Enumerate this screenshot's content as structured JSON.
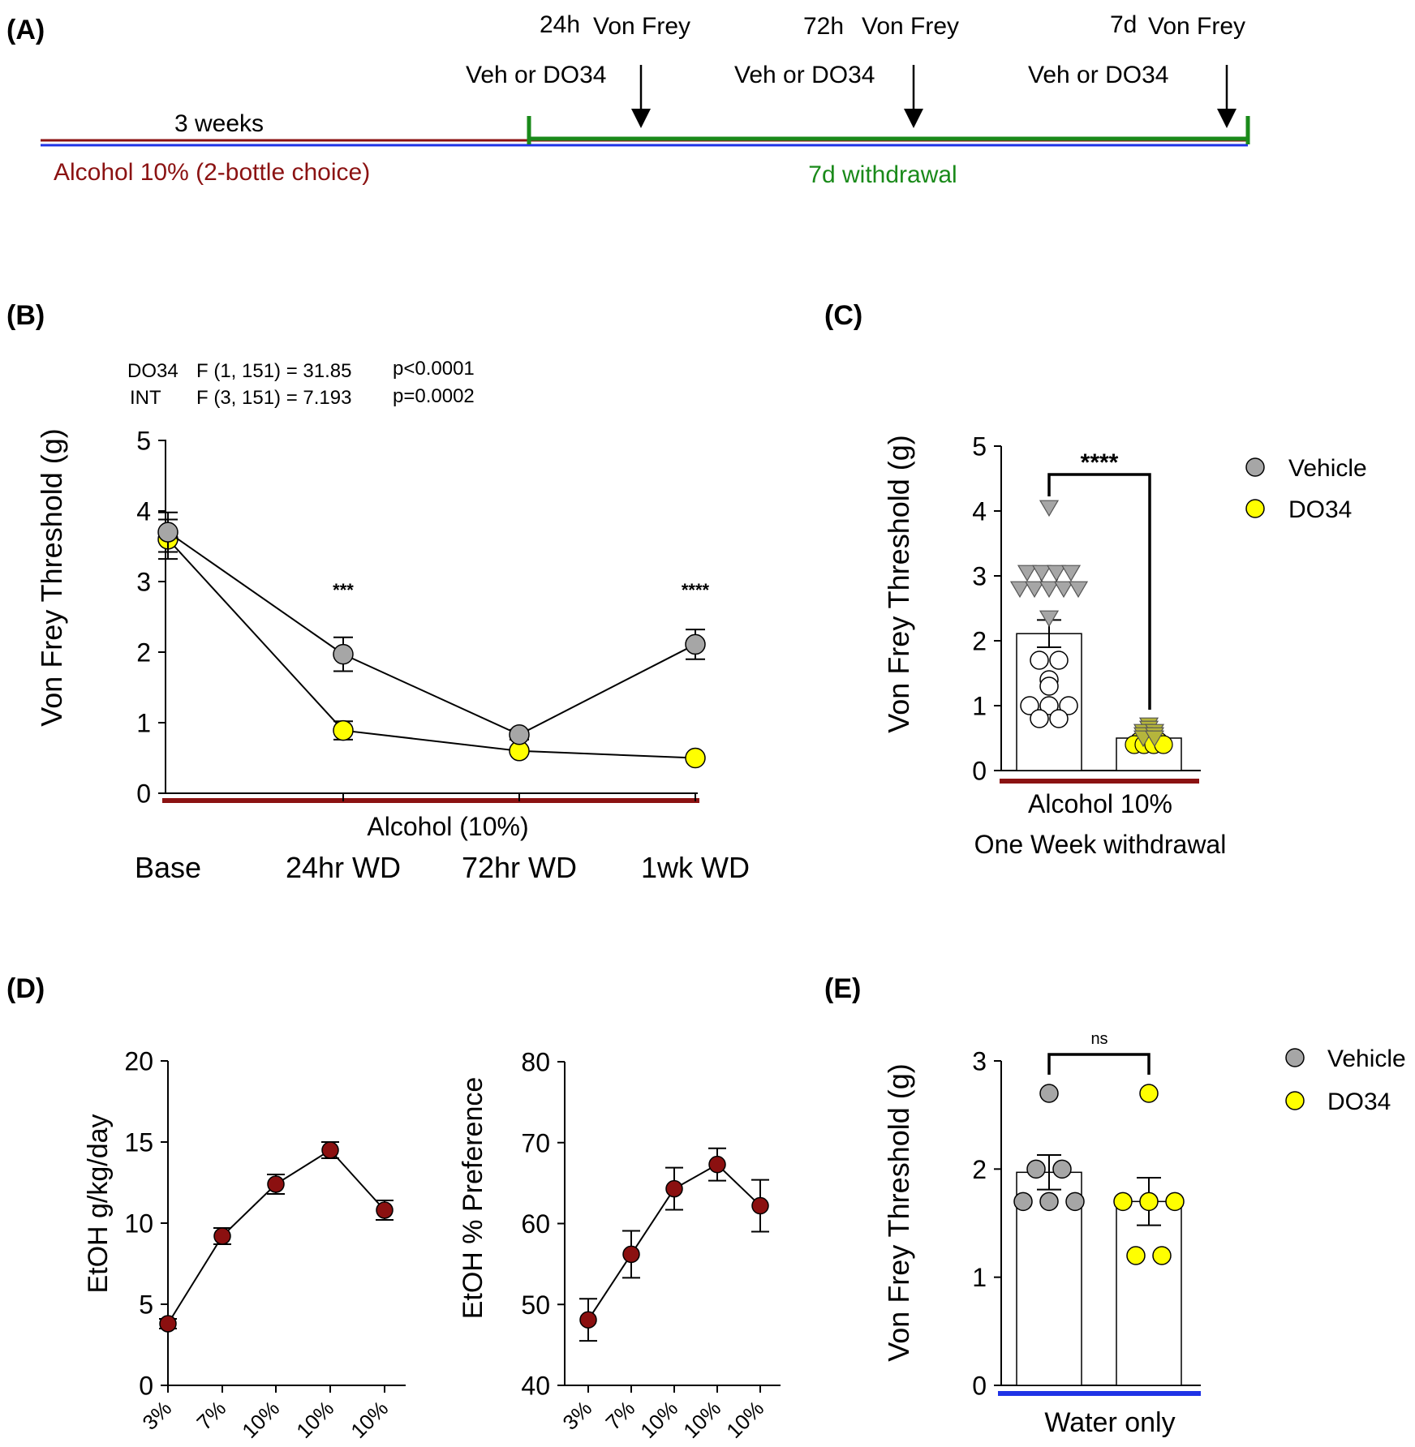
{
  "colors": {
    "vehicle": "#a6a6a6",
    "do34": "#ffff00",
    "do34_triangle": "#b5b53c",
    "alcohol": "#8b1212",
    "green": "#1a8a1a",
    "blue": "#1f33e6",
    "etoh": "#8b1010",
    "white": "#ffffff",
    "black": "#000000"
  },
  "panel_a": {
    "label": "(A)",
    "period_label": "3 weeks",
    "alcohol_label": "Alcohol 10% (2-bottle choice)",
    "withdrawal_label": "7d withdrawal",
    "timepoints": [
      {
        "time": "24h",
        "test": "Von Frey",
        "treatment": "Veh or DO34"
      },
      {
        "time": "72h",
        "test": "Von Frey",
        "treatment": "Veh or DO34"
      },
      {
        "time": "7d",
        "test": "Von Frey",
        "treatment": "Veh or DO34"
      }
    ]
  },
  "chart_data": [
    {
      "id": "B",
      "type": "line",
      "panel_label": "(B)",
      "stats": [
        {
          "effect": "DO34",
          "f": "F (1, 151) = 31.85",
          "p": "p<0.0001"
        },
        {
          "effect": "INT",
          "f": "F (3, 151) = 7.193",
          "p": "p=0.0002"
        }
      ],
      "ylabel": "Von Frey Threshold (g)",
      "xlabel": "Alcohol (10%)",
      "categories": [
        "Base",
        "24hr WD",
        "72hr WD",
        "1wk WD"
      ],
      "ylim": [
        0,
        5
      ],
      "yticks": [
        "0",
        "1",
        "2",
        "3",
        "4",
        "5"
      ],
      "series": [
        {
          "key": "vehicle",
          "values": [
            3.7,
            1.97,
            0.83,
            2.11
          ],
          "errors": [
            0.28,
            0.24,
            0.07,
            0.21
          ]
        },
        {
          "key": "do34",
          "values": [
            3.6,
            0.89,
            0.6,
            0.5
          ],
          "errors": [
            0.28,
            0.13,
            0.05,
            0.04
          ]
        }
      ],
      "significance": [
        {
          "category_index": 1,
          "label": "***"
        },
        {
          "category_index": 3,
          "label": "****"
        }
      ]
    },
    {
      "id": "C",
      "type": "bar",
      "panel_label": "(C)",
      "ylabel": "Von Frey Threshold (g)",
      "xlabel_lines": [
        "Alcohol 10%",
        "One Week withdrawal"
      ],
      "ylim": [
        0,
        5
      ],
      "yticks": [
        "0",
        "1",
        "2",
        "3",
        "4",
        "5"
      ],
      "legend": {
        "position": "top-right",
        "entries": [
          "Vehicle",
          "DO34"
        ]
      },
      "bars": [
        {
          "key": "vehicle",
          "value": 2.11,
          "error": 0.21
        },
        {
          "key": "do34",
          "value": 0.5,
          "error": 0.04
        }
      ],
      "significance": "****",
      "points_vehicle_triangles": [
        4.05,
        3.05,
        3.05,
        3.05,
        3.05,
        2.8,
        2.8,
        2.8,
        2.8,
        2.8,
        2.35
      ],
      "points_vehicle_circles": [
        3.0,
        1.7,
        1.7,
        1.4,
        1.3,
        1.0,
        1.0,
        1.0,
        0.8,
        0.8
      ],
      "points_do34_triangles": [
        0.7,
        0.65,
        0.6,
        0.6,
        0.55,
        0.55,
        0.5,
        0.5
      ],
      "points_do34_circles": [
        0.55,
        0.5,
        0.45,
        0.45,
        0.45,
        0.4,
        0.4,
        0.4,
        0.4
      ]
    },
    {
      "id": "D1",
      "type": "line",
      "panel_label": "(D)",
      "ylabel": "EtOH g/kg/day",
      "categories": [
        "3%",
        "7%",
        "10%",
        "10%",
        "10%"
      ],
      "ylim": [
        0,
        20
      ],
      "yticks": [
        "0",
        "5",
        "10",
        "15",
        "20"
      ],
      "series": [
        {
          "values": [
            3.8,
            9.2,
            12.4,
            14.5,
            10.8
          ],
          "errors": [
            0.3,
            0.5,
            0.6,
            0.5,
            0.6
          ]
        }
      ]
    },
    {
      "id": "D2",
      "type": "line",
      "ylabel": "EtOH % Preference",
      "categories": [
        "3%",
        "7%",
        "10%",
        "10%",
        "10%"
      ],
      "ylim": [
        40,
        80
      ],
      "yticks": [
        "40",
        "50",
        "60",
        "70",
        "80"
      ],
      "series": [
        {
          "values": [
            48.1,
            56.2,
            64.3,
            67.3,
            62.2
          ],
          "errors": [
            2.6,
            2.9,
            2.6,
            2.0,
            3.2
          ]
        }
      ]
    },
    {
      "id": "E",
      "type": "bar",
      "panel_label": "(E)",
      "ylabel": "Von Frey Threshold (g)",
      "xlabel": "Water only",
      "ylim": [
        0,
        3
      ],
      "yticks": [
        "0",
        "1",
        "2",
        "3"
      ],
      "legend": {
        "position": "top-right",
        "entries": [
          "Vehicle",
          "DO34"
        ]
      },
      "bars": [
        {
          "key": "vehicle",
          "value": 1.97,
          "error": 0.16
        },
        {
          "key": "do34",
          "value": 1.7,
          "error": 0.22
        }
      ],
      "significance": "ns",
      "points_vehicle": [
        2.7,
        2.0,
        2.0,
        1.7,
        1.7,
        1.7
      ],
      "points_do34": [
        2.7,
        1.7,
        1.7,
        1.7,
        1.2,
        1.2
      ]
    }
  ]
}
